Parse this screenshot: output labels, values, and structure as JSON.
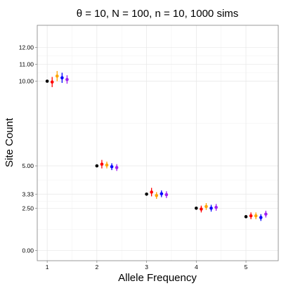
{
  "chart_data": {
    "type": "scatter",
    "title": "θ = 10, N = 100, n = 10, 1000 sims",
    "xlabel": "Allele Frequency",
    "ylabel": "Site Count",
    "x_ticks": [
      1,
      2,
      3,
      4,
      5
    ],
    "x_tick_labels": [
      "1",
      "2",
      "3",
      "4",
      "5"
    ],
    "y_ticks": [
      0,
      2.5,
      3.33,
      5,
      10,
      11,
      12
    ],
    "y_tick_labels": [
      "0.00",
      "2.50",
      "3.33",
      "5.00",
      "10.00",
      "11.00",
      "12.00"
    ],
    "xlim": [
      0.8,
      5.65
    ],
    "ylim": [
      -0.6,
      13.3
    ],
    "grid": true,
    "legend": "none",
    "expected": {
      "color": "#000000",
      "values": [
        10.0,
        5.0,
        3.33,
        2.5,
        2.0
      ]
    },
    "series": [
      {
        "color": "#ff0000",
        "offset": 0.1,
        "values": [
          9.95,
          5.1,
          3.45,
          2.45,
          2.05
        ],
        "lower": [
          9.65,
          4.85,
          3.2,
          2.25,
          1.85
        ],
        "upper": [
          10.25,
          5.35,
          3.7,
          2.65,
          2.25
        ]
      },
      {
        "color": "#ffa500",
        "offset": 0.2,
        "values": [
          10.3,
          5.05,
          3.25,
          2.6,
          2.05
        ],
        "lower": [
          10.0,
          4.85,
          3.05,
          2.4,
          1.85
        ],
        "upper": [
          10.6,
          5.25,
          3.45,
          2.8,
          2.25
        ]
      },
      {
        "color": "#0000ff",
        "offset": 0.3,
        "values": [
          10.2,
          4.95,
          3.35,
          2.5,
          1.95
        ],
        "lower": [
          9.9,
          4.75,
          3.15,
          2.3,
          1.75
        ],
        "upper": [
          10.5,
          5.15,
          3.55,
          2.7,
          2.15
        ]
      },
      {
        "color": "#a020f0",
        "offset": 0.4,
        "values": [
          10.1,
          4.9,
          3.3,
          2.55,
          2.15
        ],
        "lower": [
          9.85,
          4.7,
          3.1,
          2.35,
          1.95
        ],
        "upper": [
          10.35,
          5.1,
          3.5,
          2.75,
          2.35
        ]
      }
    ]
  }
}
